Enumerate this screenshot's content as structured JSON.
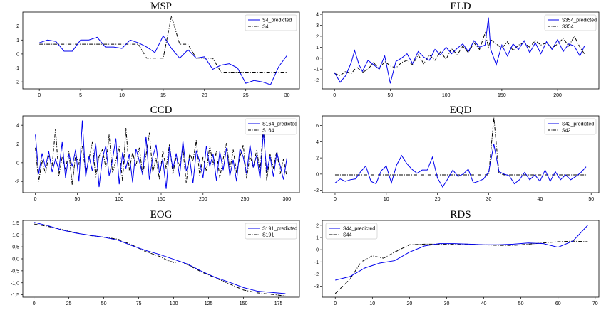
{
  "figure": {
    "background": "#ffffff"
  },
  "colors": {
    "predicted": "#0000ee",
    "actual": "#000000"
  },
  "chart_data": [
    {
      "type": "line",
      "title": "MSP",
      "xlim": [
        -2,
        31.5
      ],
      "ylim": [
        -2.5,
        3
      ],
      "xticks": [
        0,
        5,
        10,
        15,
        20,
        25,
        30
      ],
      "yticks": [
        -2,
        -1,
        0,
        1,
        2
      ],
      "legend_position": "top-right",
      "series": [
        {
          "name": "S4_predicted",
          "style": "solid",
          "color": "#0000ee",
          "x": [
            0,
            1,
            2,
            3,
            4,
            5,
            6,
            7,
            8,
            9,
            10,
            11,
            12,
            13,
            14,
            15,
            16,
            17,
            18,
            19,
            20,
            21,
            22,
            23,
            24,
            25,
            26,
            27,
            28,
            29,
            30
          ],
          "y": [
            0.8,
            1.0,
            0.9,
            0.2,
            0.2,
            1.0,
            1.0,
            1.2,
            0.5,
            0.5,
            0.4,
            1.0,
            0.8,
            0.5,
            0.1,
            1.3,
            0.4,
            -0.3,
            0.3,
            -0.3,
            -0.2,
            -1.1,
            -0.8,
            -0.7,
            -1.0,
            -2.1,
            -1.9,
            -2.0,
            -2.2,
            -0.9,
            -0.1
          ]
        },
        {
          "name": "S4",
          "style": "dashdot",
          "color": "#000000",
          "x": [
            0,
            1,
            2,
            3,
            4,
            5,
            6,
            7,
            8,
            9,
            10,
            11,
            12,
            13,
            14,
            15,
            16,
            17,
            18,
            19,
            20,
            21,
            22,
            23,
            24,
            25,
            26,
            27,
            28,
            29,
            30
          ],
          "y": [
            0.7,
            0.7,
            0.7,
            0.7,
            0.7,
            0.7,
            0.7,
            0.7,
            0.7,
            0.7,
            0.7,
            0.7,
            0.7,
            -0.3,
            -0.3,
            -0.3,
            2.7,
            0.7,
            0.7,
            -0.3,
            -0.3,
            -0.3,
            -1.3,
            -1.3,
            -1.3,
            -1.3,
            -1.3,
            -1.3,
            -1.3,
            -1.3,
            -1.3
          ]
        }
      ]
    },
    {
      "type": "line",
      "title": "ELD",
      "xlim": [
        -11,
        237
      ],
      "ylim": [
        -2.8,
        4.2
      ],
      "xticks": [
        0,
        50,
        100,
        150,
        200
      ],
      "yticks": [
        -2,
        -1,
        0,
        1,
        2,
        3,
        4
      ],
      "legend_position": "top-right",
      "series": [
        {
          "name": "S354_predicted",
          "style": "solid",
          "color": "#0000ee",
          "x": [
            0,
            5,
            10,
            15,
            18,
            22,
            25,
            30,
            35,
            40,
            45,
            50,
            55,
            60,
            65,
            70,
            75,
            80,
            85,
            90,
            95,
            100,
            105,
            110,
            115,
            120,
            125,
            130,
            135,
            138,
            140,
            145,
            150,
            155,
            160,
            165,
            170,
            175,
            180,
            185,
            190,
            195,
            200,
            205,
            210,
            215,
            220,
            224
          ],
          "y": [
            -1.3,
            -2.2,
            -1.6,
            -0.4,
            0.7,
            -0.6,
            -1.2,
            -0.2,
            -0.6,
            -1.0,
            0.2,
            -2.3,
            -0.3,
            0.0,
            0.4,
            -0.5,
            0.6,
            0.1,
            -0.2,
            0.8,
            0.3,
            1.0,
            0.4,
            0.9,
            1.3,
            0.6,
            1.6,
            1.0,
            1.2,
            3.7,
            0.8,
            -0.6,
            1.2,
            0.2,
            1.3,
            0.8,
            1.6,
            0.5,
            1.4,
            0.4,
            1.5,
            0.8,
            1.7,
            0.6,
            1.3,
            1.1,
            0.2,
            1.1
          ]
        },
        {
          "name": "S354",
          "style": "dashdot",
          "color": "#000000",
          "x": [
            0,
            5,
            10,
            15,
            20,
            25,
            30,
            35,
            40,
            45,
            50,
            55,
            60,
            65,
            70,
            75,
            80,
            85,
            90,
            95,
            100,
            105,
            110,
            115,
            120,
            125,
            130,
            135,
            138,
            140,
            145,
            150,
            155,
            160,
            165,
            170,
            175,
            180,
            185,
            190,
            195,
            200,
            205,
            210,
            215,
            220,
            224
          ],
          "y": [
            -1.4,
            -1.6,
            -1.2,
            -1.4,
            -0.8,
            -1.3,
            -1.0,
            -0.4,
            -1.0,
            -0.3,
            -0.7,
            -0.9,
            -0.4,
            -0.2,
            -0.6,
            0.3,
            -0.5,
            0.3,
            -0.2,
            0.6,
            -0.1,
            0.9,
            0.3,
            1.1,
            0.5,
            1.4,
            0.8,
            2.3,
            1.0,
            1.7,
            1.3,
            0.9,
            1.5,
            0.7,
            1.2,
            1.4,
            1.0,
            1.6,
            1.2,
            1.4,
            0.9,
            1.3,
            1.8,
            1.1,
            2.0,
            1.0,
            0.4
          ]
        }
      ]
    },
    {
      "type": "line",
      "title": "CCD",
      "xlim": [
        -15,
        315
      ],
      "ylim": [
        -3.2,
        5.0
      ],
      "xticks": [
        0,
        50,
        100,
        150,
        200,
        250,
        300
      ],
      "yticks": [
        -2,
        0,
        2,
        4
      ],
      "legend_position": "top-right",
      "series": [
        {
          "name": "S164_predicted",
          "style": "solid",
          "color": "#0000ee",
          "x": [
            0,
            4,
            8,
            12,
            16,
            20,
            24,
            28,
            32,
            36,
            40,
            44,
            48,
            52,
            56,
            60,
            64,
            68,
            72,
            76,
            80,
            84,
            88,
            92,
            96,
            100,
            104,
            108,
            112,
            116,
            120,
            124,
            128,
            132,
            136,
            140,
            144,
            148,
            152,
            156,
            160,
            164,
            168,
            172,
            176,
            180,
            184,
            188,
            192,
            196,
            200,
            204,
            208,
            212,
            216,
            220,
            224,
            228,
            232,
            236,
            240,
            244,
            248,
            252,
            256,
            260,
            264,
            268,
            272,
            276,
            280,
            284,
            288,
            292,
            296,
            300
          ],
          "y": [
            3.0,
            -1.2,
            1.0,
            -0.5,
            1.2,
            -1.0,
            0.4,
            -0.8,
            2.2,
            -1.6,
            0.9,
            -0.4,
            1.4,
            -2.0,
            4.5,
            -1.5,
            0.7,
            -0.9,
            2.1,
            -2.6,
            0.5,
            1.8,
            -1.4,
            0.3,
            2.6,
            -2.3,
            1.1,
            -0.6,
            0.9,
            -2.1,
            1.5,
            0.2,
            -1.3,
            2.8,
            -1.8,
            0.6,
            1.9,
            -1.1,
            0.4,
            -2.8,
            1.7,
            -0.7,
            1.0,
            -1.5,
            2.3,
            -0.9,
            0.5,
            -2.2,
            1.3,
            0.1,
            -1.6,
            1.8,
            -0.4,
            0.9,
            -1.9,
            1.2,
            -0.8,
            1.6,
            -1.4,
            0.3,
            -2.0,
            1.5,
            0.6,
            -1.2,
            1.9,
            -0.5,
            0.8,
            -1.7,
            3.3,
            -1.0,
            0.7,
            -1.5,
            1.1,
            -0.3,
            -1.8,
            0.5
          ]
        },
        {
          "name": "S164",
          "style": "dashdot",
          "color": "#000000",
          "x": [
            0,
            4,
            8,
            12,
            16,
            20,
            24,
            28,
            32,
            36,
            40,
            44,
            48,
            52,
            56,
            60,
            64,
            68,
            72,
            76,
            80,
            84,
            88,
            92,
            96,
            100,
            104,
            108,
            112,
            116,
            120,
            124,
            128,
            132,
            136,
            140,
            144,
            148,
            152,
            156,
            160,
            164,
            168,
            172,
            176,
            180,
            184,
            188,
            192,
            196,
            200,
            204,
            208,
            212,
            216,
            220,
            224,
            228,
            232,
            236,
            240,
            244,
            248,
            252,
            256,
            260,
            264,
            268,
            272,
            276,
            280,
            284,
            288,
            292,
            296,
            300
          ],
          "y": [
            1.6,
            -2.0,
            0.3,
            -1.2,
            0.8,
            -0.3,
            3.6,
            -1.4,
            0.6,
            -0.7,
            1.2,
            -2.4,
            0.9,
            -0.2,
            1.8,
            -1.0,
            0.4,
            2.2,
            -1.6,
            0.7,
            1.4,
            -0.5,
            3.0,
            -1.1,
            0.2,
            1.7,
            -2.0,
            3.7,
            -0.8,
            1.1,
            -0.4,
            1.6,
            -1.3,
            0.8,
            3.2,
            -1.0,
            0.5,
            -1.8,
            1.3,
            -0.6,
            2.0,
            -1.2,
            0.7,
            -0.3,
            1.5,
            -2.2,
            1.0,
            0.2,
            2.4,
            -1.4,
            0.6,
            -0.9,
            1.8,
            -0.2,
            1.2,
            -1.6,
            0.4,
            2.1,
            -0.8,
            1.4,
            -1.1,
            0.6,
            1.9,
            -1.7,
            0.8,
            -0.5,
            1.4,
            -1.0,
            4.0,
            -1.9,
            0.9,
            -0.6,
            1.3,
            -1.2,
            0.4,
            -1.5
          ]
        }
      ]
    },
    {
      "type": "line",
      "title": "EQD",
      "xlim": [
        -2.5,
        51.5
      ],
      "ylim": [
        -2.3,
        7.2
      ],
      "xticks": [
        0,
        10,
        20,
        30,
        40,
        50
      ],
      "yticks": [
        -2,
        0,
        2,
        4,
        6
      ],
      "legend_position": "top-right",
      "series": [
        {
          "name": "S42_predicted",
          "style": "solid",
          "color": "#0000ee",
          "x": [
            0,
            1,
            2,
            3,
            4,
            5,
            6,
            7,
            8,
            9,
            10,
            11,
            12,
            13,
            14,
            15,
            16,
            17,
            18,
            19,
            20,
            21,
            22,
            23,
            24,
            25,
            26,
            27,
            28,
            29,
            30,
            31,
            32,
            33,
            34,
            35,
            36,
            37,
            38,
            39,
            40,
            41,
            42,
            43,
            44,
            45,
            46,
            47,
            48,
            49
          ],
          "y": [
            -1.1,
            -0.6,
            -0.9,
            -0.7,
            -0.6,
            0.3,
            1.0,
            -0.9,
            -1.2,
            0.4,
            1.0,
            -1.1,
            1.1,
            2.3,
            1.3,
            0.6,
            0.1,
            0.5,
            0.5,
            2.1,
            -0.5,
            -1.6,
            -0.6,
            0.5,
            -0.3,
            0.0,
            0.6,
            -1.1,
            -0.9,
            -0.6,
            0.3,
            3.7,
            0.3,
            0.0,
            -0.2,
            -1.2,
            -0.7,
            0.2,
            -0.7,
            -0.1,
            -0.9,
            0.5,
            -0.9,
            0.3,
            -0.7,
            -0.1,
            -0.7,
            -0.3,
            0.2,
            0.9
          ]
        },
        {
          "name": "S42",
          "style": "dashdot",
          "color": "#000000",
          "x": [
            0,
            29,
            30,
            31,
            32,
            33,
            49
          ],
          "y": [
            -0.1,
            -0.1,
            -0.1,
            7.0,
            0.1,
            -0.1,
            -0.1
          ]
        }
      ]
    },
    {
      "type": "line",
      "title": "EOG",
      "xlim": [
        -8,
        190
      ],
      "ylim": [
        -1.6,
        1.6
      ],
      "xticks": [
        0,
        25,
        50,
        75,
        100,
        125,
        150,
        175
      ],
      "yticks": [
        -1.5,
        -1.0,
        -0.5,
        0.0,
        0.5,
        1.0,
        1.5
      ],
      "ytick_labels": [
        "-1,5",
        "-1,0",
        "-0,5",
        "0,0",
        "0,5",
        "1,0",
        "1,5"
      ],
      "legend_position": "top-right",
      "series": [
        {
          "name": "S191_predicted",
          "style": "solid",
          "color": "#0000ee",
          "x": [
            0,
            10,
            20,
            30,
            40,
            50,
            60,
            70,
            80,
            90,
            100,
            110,
            120,
            130,
            140,
            150,
            160,
            170,
            180
          ],
          "y": [
            1.52,
            1.38,
            1.2,
            1.07,
            0.98,
            0.9,
            0.78,
            0.55,
            0.35,
            0.18,
            -0.02,
            -0.22,
            -0.52,
            -0.78,
            -0.98,
            -1.2,
            -1.35,
            -1.4,
            -1.45
          ]
        },
        {
          "name": "S191",
          "style": "dashdot",
          "color": "#000000",
          "x": [
            0,
            10,
            20,
            30,
            40,
            50,
            60,
            70,
            80,
            90,
            95,
            100,
            105,
            110,
            120,
            130,
            140,
            150,
            160,
            170,
            180
          ],
          "y": [
            1.45,
            1.35,
            1.22,
            1.08,
            0.97,
            0.9,
            0.82,
            0.58,
            0.3,
            0.1,
            -0.05,
            -0.15,
            -0.12,
            -0.25,
            -0.55,
            -0.8,
            -1.05,
            -1.3,
            -1.42,
            -1.48,
            -1.55
          ]
        }
      ]
    },
    {
      "type": "line",
      "title": "RDS",
      "xlim": [
        -3.5,
        71
      ],
      "ylim": [
        -3.9,
        2.4
      ],
      "xticks": [
        0,
        10,
        20,
        30,
        40,
        50,
        60,
        70
      ],
      "yticks": [
        -3,
        -2,
        -1,
        0,
        1,
        2
      ],
      "legend_position": "top-left",
      "series": [
        {
          "name": "S44_predicted",
          "style": "solid",
          "color": "#0000ee",
          "x": [
            0,
            4,
            8,
            12,
            16,
            20,
            24,
            28,
            32,
            36,
            40,
            44,
            48,
            52,
            56,
            60,
            64,
            68
          ],
          "y": [
            -2.5,
            -2.2,
            -1.5,
            -1.1,
            -0.9,
            -0.2,
            0.3,
            0.5,
            0.5,
            0.45,
            0.4,
            0.4,
            0.45,
            0.55,
            0.5,
            0.2,
            0.7,
            2.0
          ]
        },
        {
          "name": "S44",
          "style": "dashdot",
          "color": "#000000",
          "x": [
            0,
            4,
            7,
            10,
            13,
            16,
            20,
            24,
            28,
            32,
            36,
            40,
            44,
            48,
            52,
            56,
            60,
            64,
            68
          ],
          "y": [
            -3.6,
            -2.4,
            -1.0,
            -0.5,
            -0.7,
            -0.2,
            0.4,
            0.45,
            0.45,
            0.45,
            0.45,
            0.4,
            0.35,
            0.35,
            0.45,
            0.55,
            0.65,
            0.7,
            0.65
          ]
        }
      ]
    }
  ]
}
